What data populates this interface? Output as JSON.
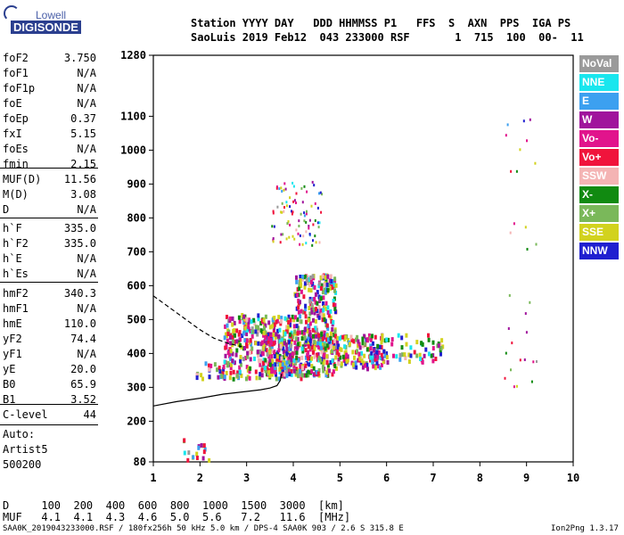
{
  "logo": {
    "line1": "Lowell",
    "line2": "DIGISONDE"
  },
  "header": {
    "line1": "Station YYYY DAY   DDD HHMMSS P1   FFS  S  AXN  PPS  IGA PS",
    "line2": "SaoLuis 2019 Feb12  043 233000 RSF       1  715  100  00-  11"
  },
  "params": [
    {
      "label": "foF2",
      "value": "3.750"
    },
    {
      "label": "foF1",
      "value": "N/A"
    },
    {
      "label": "foF1p",
      "value": "N/A"
    },
    {
      "label": "foE",
      "value": "N/A"
    },
    {
      "label": "foEp",
      "value": "0.37"
    },
    {
      "label": "fxI",
      "value": "5.15"
    },
    {
      "label": "foEs",
      "value": "N/A"
    },
    {
      "label": "fmin",
      "value": "2.15"
    },
    {
      "label": "MUF(D)",
      "value": "11.56"
    },
    {
      "label": "M(D)",
      "value": "3.08"
    },
    {
      "label": "D",
      "value": "N/A"
    },
    {
      "label": "h`F",
      "value": "335.0"
    },
    {
      "label": "h`F2",
      "value": "335.0"
    },
    {
      "label": "h`E",
      "value": "N/A"
    },
    {
      "label": "h`Es",
      "value": "N/A"
    },
    {
      "label": "hmF2",
      "value": "340.3"
    },
    {
      "label": "hmF1",
      "value": "N/A"
    },
    {
      "label": "hmE",
      "value": "110.0"
    },
    {
      "label": "yF2",
      "value": "74.4"
    },
    {
      "label": "yF1",
      "value": "N/A"
    },
    {
      "label": "yE",
      "value": "20.0"
    },
    {
      "label": "B0",
      "value": "65.9"
    },
    {
      "label": "B1",
      "value": "3.52"
    },
    {
      "label": "C-level",
      "value": "44"
    }
  ],
  "auto": {
    "line1": "Auto:",
    "line2": "Artist5",
    "line3": "500200"
  },
  "muf_table": {
    "d_row": "D     100  200  400  600  800  1000  1500  3000  [km]",
    "muf_row": "MUF   4.1  4.1  4.3  4.6  5.0  5.6   7.2   11.6  [MHz]"
  },
  "footer": {
    "left": "SAA0K_2019043233000.RSF / 180fx256h 50 kHz 5.0 km / DPS-4 SAA0K 903 / 2.6 S 315.8 E",
    "right": "Ion2Png 1.3.17"
  },
  "legend": [
    {
      "label": "NoVal",
      "color": "#9a9a9a"
    },
    {
      "label": "NNE",
      "color": "#19e6ee"
    },
    {
      "label": "E",
      "color": "#3ca0f0"
    },
    {
      "label": "W",
      "color": "#a0149c"
    },
    {
      "label": "Vo-",
      "color": "#e1148c"
    },
    {
      "label": "Vo+",
      "color": "#f0143c"
    },
    {
      "label": "SSW",
      "color": "#f4b4b4"
    },
    {
      "label": "X-",
      "color": "#118a11"
    },
    {
      "label": "X+",
      "color": "#7ab85a"
    },
    {
      "label": "SSE",
      "color": "#d2d21e"
    },
    {
      "label": "NNW",
      "color": "#2020d0"
    }
  ],
  "chart_data": {
    "type": "scatter",
    "x_ticks": [
      "1",
      "2",
      "3",
      "4",
      "5",
      "6",
      "7",
      "8",
      "9",
      "10"
    ],
    "y_ticks": [
      "80",
      "200",
      "300",
      "400",
      "500",
      "600",
      "700",
      "800",
      "900",
      "1000",
      "1100",
      "1280"
    ],
    "xlim": [
      1,
      10
    ],
    "ylim": [
      80,
      1280
    ],
    "profile_curve": [
      [
        1.0,
        245
      ],
      [
        1.5,
        258
      ],
      [
        2.0,
        268
      ],
      [
        2.5,
        280
      ],
      [
        3.0,
        288
      ],
      [
        3.3,
        293
      ],
      [
        3.5,
        298
      ],
      [
        3.65,
        305
      ],
      [
        3.72,
        320
      ],
      [
        3.75,
        340
      ]
    ],
    "dashed_curve": [
      [
        1.0,
        570
      ],
      [
        1.5,
        520
      ],
      [
        2.0,
        470
      ],
      [
        2.3,
        445
      ],
      [
        2.6,
        430
      ],
      [
        2.9,
        420
      ]
    ],
    "scatter_groups": [
      {
        "xmin": 1.9,
        "xmax": 4.2,
        "ymin": 330,
        "ymax": 380
      },
      {
        "xmin": 2.5,
        "xmax": 4.0,
        "ymin": 380,
        "ymax": 520
      },
      {
        "xmin": 3.3,
        "xmax": 4.9,
        "ymin": 340,
        "ymax": 470
      },
      {
        "xmin": 4.0,
        "xmax": 4.9,
        "ymin": 420,
        "ymax": 640
      },
      {
        "xmin": 4.9,
        "xmax": 6.0,
        "ymin": 360,
        "ymax": 460
      },
      {
        "xmin": 5.5,
        "xmax": 7.2,
        "ymin": 380,
        "ymax": 460
      },
      {
        "xmin": 3.5,
        "xmax": 4.6,
        "ymin": 720,
        "ymax": 910
      },
      {
        "xmin": 1.6,
        "xmax": 2.2,
        "ymin": 80,
        "ymax": 160
      },
      {
        "xmin": 8.5,
        "xmax": 9.2,
        "ymin": 300,
        "ymax": 1100
      }
    ]
  }
}
